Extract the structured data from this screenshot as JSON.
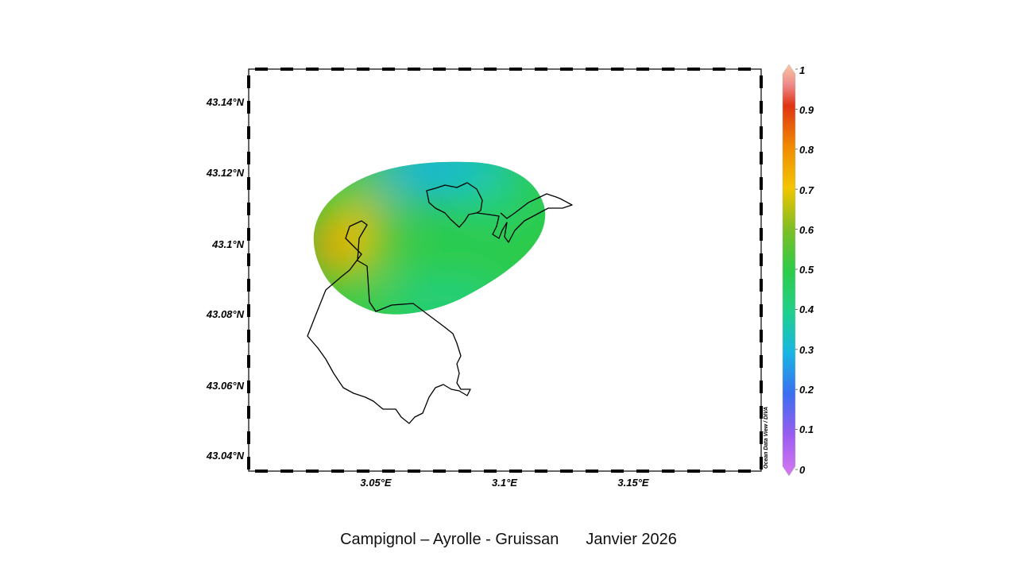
{
  "map": {
    "lat_labels": [
      "43.14°N",
      "43.12°N",
      "43.1°N",
      "43.08°N",
      "43.06°N",
      "43.04°N"
    ],
    "lon_labels": [
      "3.05°E",
      "3.1°E",
      "3.15°E"
    ],
    "credit": "Ocean Data View / DIVA"
  },
  "colorbar": {
    "ticks": [
      "1",
      "0.9",
      "0.8",
      "0.7",
      "0.6",
      "0.5",
      "0.4",
      "0.3",
      "0.2",
      "0.1",
      "0"
    ],
    "range": [
      0,
      1
    ],
    "colors": [
      "#d67af0",
      "#7a4bef",
      "#2f7de8",
      "#1ab7e0",
      "#22d28a",
      "#2ecb4a",
      "#6fbe2a",
      "#f2c500",
      "#f08a00",
      "#e03414",
      "#f3a6a6",
      "#f8c8a4"
    ]
  },
  "caption": {
    "location": "Campignol – Ayrolle - Gruissan",
    "date": "Janvier 2026"
  }
}
